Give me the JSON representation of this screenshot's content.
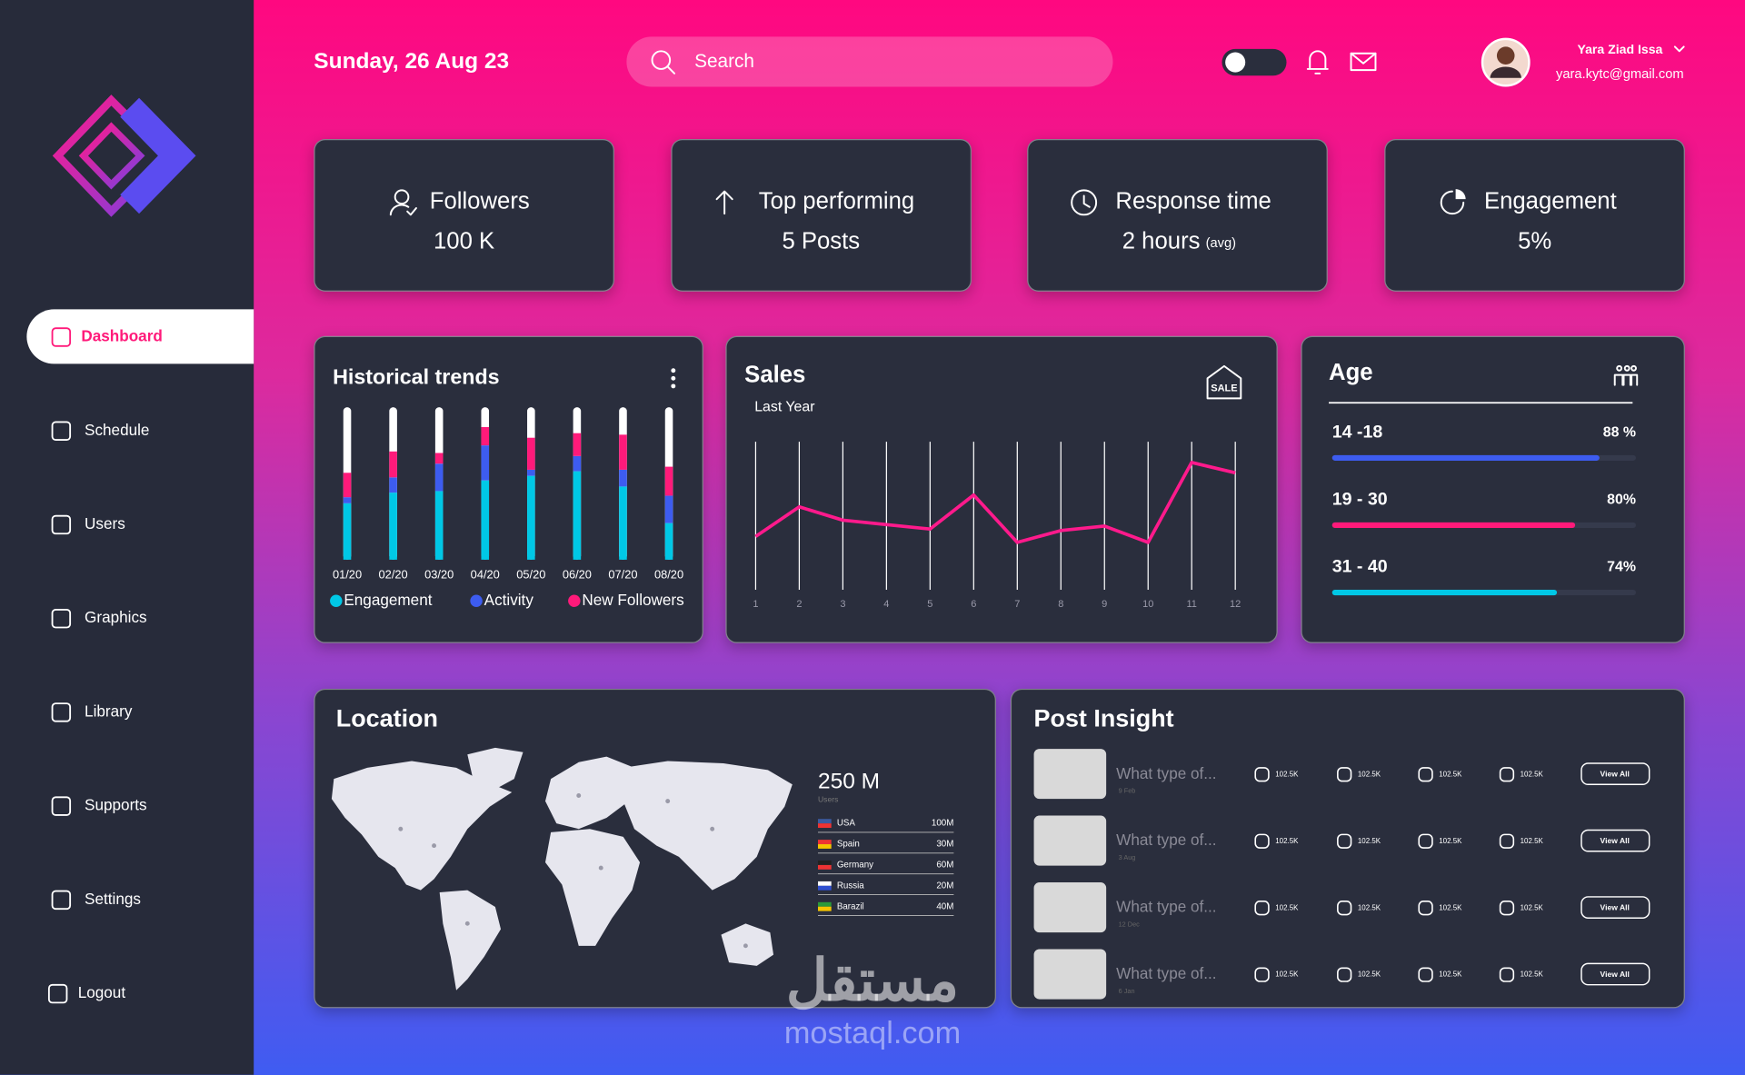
{
  "header": {
    "date": "Sunday, 26 Aug 23",
    "search": "Search",
    "user_name": "Yara Ziad Issa",
    "user_email": "yara.kytc@gmail.com"
  },
  "nav": [
    "Dashboard",
    "Schedule",
    "Users",
    "Graphics",
    "Library",
    "Supports",
    "Settings",
    "Logout"
  ],
  "stats": [
    {
      "label": "Followers",
      "value": "100 K"
    },
    {
      "label": "Top performing",
      "value": "5 Posts"
    },
    {
      "label": "Response time",
      "value": "2 hours",
      "note": "(avg)"
    },
    {
      "label": "Engagement",
      "value": "5%"
    }
  ],
  "sales_badge": "SALE",
  "chart_data": [
    {
      "type": "bar",
      "stacked": true,
      "title": "Historical trends",
      "categories": [
        "01/20",
        "02/20",
        "03/20",
        "04/20",
        "05/20",
        "06/20",
        "07/20",
        "08/20"
      ],
      "series": [
        {
          "name": "Engagement",
          "color": "#00c8e6",
          "values": [
            37,
            44,
            45,
            52,
            55,
            58,
            48,
            24
          ]
        },
        {
          "name": "Activity",
          "color": "#3d5cf0",
          "values": [
            4,
            10,
            18,
            23,
            4,
            10,
            11,
            18
          ]
        },
        {
          "name": "New Followers",
          "color": "#ff1a7a",
          "values": [
            16,
            17,
            7,
            12,
            21,
            15,
            23,
            19
          ]
        }
      ],
      "ylim": [
        0,
        100
      ]
    },
    {
      "type": "line",
      "title": "Sales",
      "subtitle": "Last Year",
      "categories": [
        "1",
        "2",
        "3",
        "4",
        "5",
        "6",
        "7",
        "8",
        "9",
        "10",
        "11",
        "12"
      ],
      "values": [
        36,
        56,
        47,
        44,
        41,
        64,
        32,
        40,
        43,
        32,
        86,
        79
      ],
      "color": "#ff1a8c",
      "ylim": [
        0,
        100
      ],
      "grid": true
    },
    {
      "type": "bar",
      "orientation": "horizontal",
      "title": "Age",
      "categories": [
        "14 -18",
        "19 - 30",
        "31 - 40"
      ],
      "values": [
        88,
        80,
        74
      ],
      "value_labels": [
        "88 %",
        "80%",
        "74%"
      ],
      "colors": [
        "#3d5cf0",
        "#ff1a7a",
        "#00c8e6"
      ],
      "xlim": [
        0,
        100
      ]
    }
  ],
  "location": {
    "title": "Location",
    "total": "250 M",
    "total_label": "Users",
    "countries": [
      {
        "name": "USA",
        "value": "100M"
      },
      {
        "name": "Spain",
        "value": "30M"
      },
      {
        "name": "Germany",
        "value": "60M"
      },
      {
        "name": "Russia",
        "value": "20M"
      },
      {
        "name": "Barazil",
        "value": "40M"
      }
    ]
  },
  "post_insight": {
    "title": "Post Insight",
    "rows": [
      {
        "title": "What type of...",
        "date": "9 Feb",
        "likes": "102.5K",
        "saves": "102.5K",
        "reactions": "102.5K",
        "comments": "102.5K",
        "button": "View All"
      },
      {
        "title": "What type of...",
        "date": "3 Aug",
        "likes": "102.5K",
        "saves": "102.5K",
        "reactions": "102.5K",
        "comments": "102.5K",
        "button": "View All"
      },
      {
        "title": "What type of...",
        "date": "12 Dec",
        "likes": "102.5K",
        "saves": "102.5K",
        "reactions": "102.5K",
        "comments": "102.5K",
        "button": "View All"
      },
      {
        "title": "What type of...",
        "date": "6 Jan",
        "likes": "102.5K",
        "saves": "102.5K",
        "reactions": "102.5K",
        "comments": "102.5K",
        "button": "View All"
      }
    ]
  },
  "watermark": {
    "arabic": "مستقل",
    "latin": "mostaql.com"
  }
}
